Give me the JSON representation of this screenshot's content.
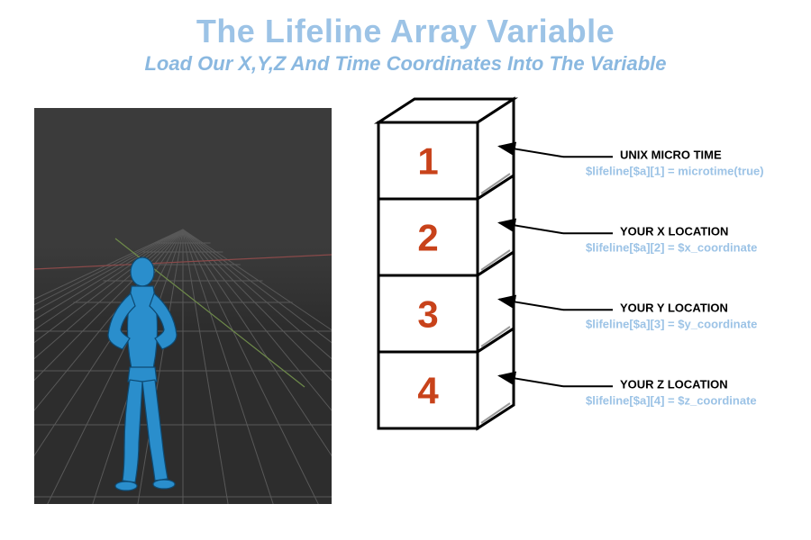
{
  "title": {
    "text": "The Lifeline Array Variable",
    "color": "#9cc3e6",
    "fontsize": 36
  },
  "subtitle": {
    "text": "Load Our X,Y,Z And Time Coordinates Into The Variable",
    "color": "#8ab8e0",
    "fontsize": 22
  },
  "scene": {
    "background_upper": "#3b3b3b",
    "background_lower": "#2d2d2d",
    "grid_color": "#595959",
    "x_axis_color": "#8a4a4a",
    "y_axis_color": "#6e8a4a",
    "figure_color": "#2a8ecc",
    "figure_stroke": "#0d4a73"
  },
  "stack": {
    "type": "infographic",
    "box_stroke": "#000000",
    "box_fill": "#ffffff",
    "inner_line_color": "#9a9a9a",
    "number_color": "#c8421a",
    "label_code_color": "#9cc3e6",
    "arrow_color": "#000000",
    "boxes": [
      {
        "number": "1",
        "label_title": "UNIX MICRO TIME",
        "label_code": "$lifeline[$a][1] = microtime(true)"
      },
      {
        "number": "2",
        "label_title": "YOUR X LOCATION",
        "label_code": "$lifeline[$a][2] = $x_coordinate"
      },
      {
        "number": "3",
        "label_title": "YOUR Y LOCATION",
        "label_code": "$lifeline[$a][3] = $y_coordinate"
      },
      {
        "number": "4",
        "label_title": "YOUR Z LOCATION",
        "label_code": "$lifeline[$a][4] = $z_coordinate"
      }
    ]
  }
}
